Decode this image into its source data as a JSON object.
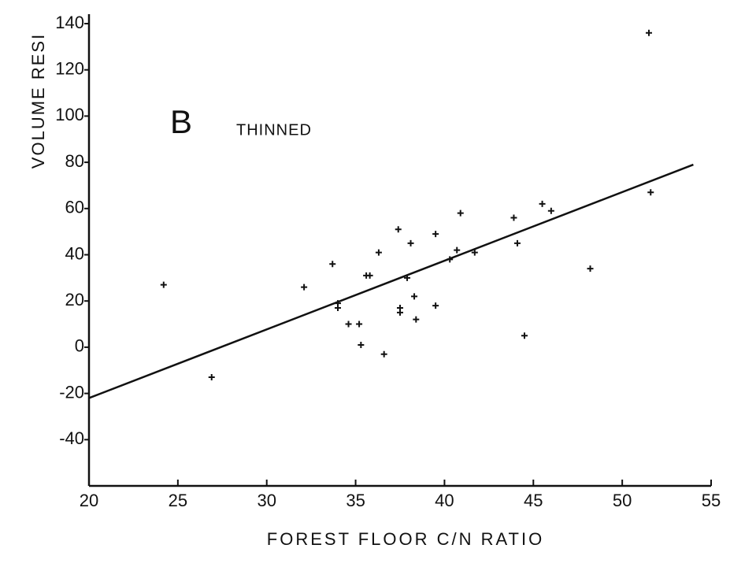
{
  "chart_data": {
    "type": "scatter",
    "title": "B",
    "annotation": "THINNED",
    "x_label": "FOREST FLOOR C/N RATIO",
    "y_label": "VOLUME RESI",
    "x": [
      24.2,
      26.9,
      32.1,
      33.7,
      34.0,
      34.0,
      34.6,
      35.2,
      35.3,
      35.6,
      35.8,
      36.3,
      36.6,
      37.4,
      37.5,
      37.5,
      37.9,
      38.1,
      38.3,
      38.4,
      39.5,
      39.5,
      40.3,
      40.7,
      40.9,
      41.7,
      43.9,
      44.1,
      44.5,
      45.5,
      46.0,
      48.2,
      51.5,
      51.6
    ],
    "values": [
      27,
      -13,
      26,
      36,
      19,
      17,
      10,
      10,
      1,
      31,
      31,
      41,
      -3,
      51,
      17,
      15,
      30,
      45,
      22,
      12,
      49,
      18,
      38,
      42,
      58,
      41,
      56,
      45,
      5,
      62,
      59,
      34,
      136,
      67
    ],
    "color": "#111111",
    "fit": {
      "x": [
        20,
        54
      ],
      "values": [
        -22,
        79
      ]
    },
    "xlim": [
      20,
      55
    ],
    "xticks": [
      20,
      25,
      30,
      35,
      40,
      45,
      50,
      55
    ],
    "ylim": [
      -60,
      140
    ],
    "yticks": [
      -40,
      -20,
      0,
      20,
      40,
      60,
      80,
      100,
      120,
      140
    ],
    "grid": false
  }
}
